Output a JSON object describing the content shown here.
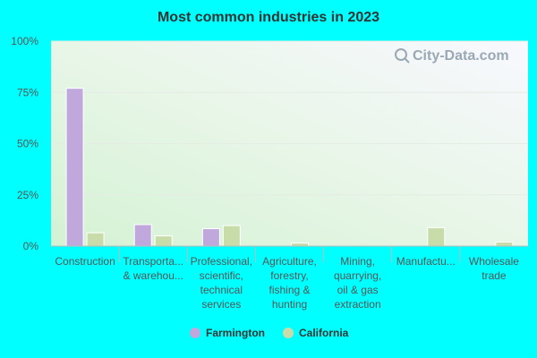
{
  "chart_data": {
    "type": "bar",
    "title": "Most common industries in 2023",
    "categories": [
      [
        "Construction"
      ],
      [
        "Transporta...",
        "& warehou..."
      ],
      [
        "Professional,",
        "scientific,",
        "technical",
        "services"
      ],
      [
        "Agriculture,",
        "forestry,",
        "fishing &",
        "hunting"
      ],
      [
        "Mining,",
        "quarrying,",
        "oil & gas",
        "extraction"
      ],
      [
        "Manufactu..."
      ],
      [
        "Wholesale",
        "trade"
      ]
    ],
    "series": [
      {
        "name": "Farmington",
        "color": "#c0a8dc",
        "values": [
          77,
          10.5,
          8.5,
          0,
          0,
          0,
          0
        ]
      },
      {
        "name": "California",
        "color": "#c8dcaa",
        "values": [
          6.5,
          5,
          10,
          1.5,
          0,
          9,
          2
        ]
      }
    ],
    "yticks": [
      "0%",
      "25%",
      "50%",
      "75%",
      "100%"
    ],
    "ylim": [
      0,
      100
    ],
    "legend": "bottom-center",
    "grid": true
  },
  "watermark": "City-Data.com"
}
